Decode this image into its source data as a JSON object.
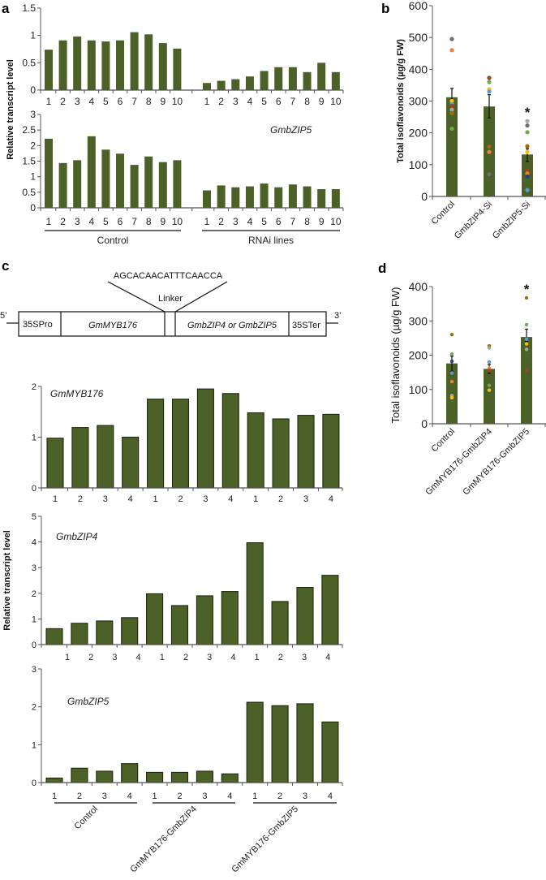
{
  "panels": {
    "a": "a",
    "b": "b",
    "c": "c",
    "d": "d"
  },
  "colors": {
    "bar": "#4b6127",
    "bar_outline": "#1e2a0c",
    "axis": "#555555"
  },
  "construct": {
    "linker_sequence": "AGCACAACATTTCAACCA",
    "linker_label": "Linker",
    "five_prime": "5’",
    "three_prime": "3’",
    "segments": [
      "35SPro",
      "GmMYB176",
      "",
      "GmbZIP4 or GmbZIP5",
      "35STer"
    ]
  },
  "chart_data": [
    {
      "id": "a-top",
      "type": "bar",
      "ylabel": "Relative transcript level",
      "ylim": [
        0,
        1.5
      ],
      "yticks": [
        "0",
        "0.5",
        "1",
        "1.5"
      ],
      "groups": [
        "Control",
        "RNAi lines"
      ],
      "categories": [
        "1",
        "2",
        "3",
        "4",
        "5",
        "6",
        "7",
        "8",
        "9",
        "10",
        "1",
        "2",
        "3",
        "4",
        "5",
        "6",
        "7",
        "8",
        "9",
        "10"
      ],
      "values": [
        0.74,
        0.91,
        0.98,
        0.91,
        0.89,
        0.91,
        1.06,
        1.02,
        0.86,
        0.76,
        0.13,
        0.17,
        0.2,
        0.25,
        0.35,
        0.42,
        0.42,
        0.33,
        0.5,
        0.33
      ]
    },
    {
      "id": "a-bottom",
      "type": "bar",
      "title": "GmbZIP5",
      "ylim": [
        0,
        3
      ],
      "yticks": [
        "0",
        "0.5",
        "1",
        "1.5",
        "2",
        "2.5",
        "3"
      ],
      "groups": [
        "Control",
        "RNAi lines"
      ],
      "categories": [
        "1",
        "2",
        "3",
        "4",
        "5",
        "6",
        "7",
        "8",
        "9",
        "10",
        "1",
        "2",
        "3",
        "4",
        "5",
        "6",
        "7",
        "8",
        "9",
        "10"
      ],
      "values": [
        2.22,
        1.44,
        1.53,
        2.3,
        1.87,
        1.74,
        1.38,
        1.65,
        1.47,
        1.53,
        0.56,
        0.72,
        0.66,
        0.69,
        0.78,
        0.66,
        0.75,
        0.69,
        0.6,
        0.6
      ]
    },
    {
      "id": "b",
      "type": "bar",
      "ylabel": "Total isoflavonoids (µg/g FW)",
      "ylim": [
        0,
        600
      ],
      "yticks": [
        "0",
        "100",
        "200",
        "300",
        "400",
        "500",
        "600"
      ],
      "categories": [
        "Control",
        "GmbZIP4-Si",
        "GmbZIP5-Si"
      ],
      "values": [
        312,
        283,
        132
      ],
      "error": [
        [
          280,
          340
        ],
        [
          247,
          320
        ],
        [
          110,
          150
        ]
      ],
      "significance": [
        "",
        "",
        "*"
      ],
      "points": [
        [
          [
            495,
            "#6d6d6d"
          ],
          [
            460,
            "#f47f3a"
          ],
          [
            300,
            "#ffc000"
          ],
          [
            290,
            "#5b9bd5"
          ],
          [
            285,
            "#a0441a"
          ],
          [
            273,
            "#a5a5a5"
          ],
          [
            262,
            "#9a6f0c"
          ],
          [
            213,
            "#70ad47"
          ]
        ],
        [
          [
            373,
            "#a0441a"
          ],
          [
            360,
            "#70ad47"
          ],
          [
            337,
            "#ffc000"
          ],
          [
            330,
            "#5b9bd5"
          ],
          [
            157,
            "#9a6f0c"
          ],
          [
            140,
            "#f47f3a"
          ],
          [
            70,
            "#6d6d6d"
          ]
        ],
        [
          [
            237,
            "#a5a5a5"
          ],
          [
            223,
            "#6d6d6d"
          ],
          [
            202,
            "#70ad47"
          ],
          [
            158,
            "#9a6f0c"
          ],
          [
            140,
            "#ffc000"
          ],
          [
            83,
            "#a0441a"
          ],
          [
            72,
            "#f47f3a"
          ],
          [
            63,
            "#264478"
          ],
          [
            20,
            "#5b9bd5"
          ]
        ]
      ]
    },
    {
      "id": "c-myb",
      "type": "bar",
      "title": "GmMYB176",
      "ylim": [
        0,
        2
      ],
      "yticks": [
        "0",
        "1",
        "2"
      ],
      "categories": [
        "1",
        "2",
        "3",
        "4",
        "1",
        "2",
        "3",
        "4",
        "1",
        "2",
        "3",
        "4"
      ],
      "values": [
        0.98,
        1.19,
        1.23,
        1.0,
        1.75,
        1.75,
        1.95,
        1.86,
        1.48,
        1.36,
        1.43,
        1.45
      ]
    },
    {
      "id": "c-zip4",
      "type": "bar",
      "title": "GmbZIP4",
      "ylabel": "Relative transcript level",
      "ylim": [
        0,
        5
      ],
      "yticks": [
        "0",
        "1",
        "2",
        "3",
        "4",
        "5"
      ],
      "categories": [
        "1",
        "2",
        "3",
        "4",
        "1",
        "2",
        "3",
        "4",
        "1",
        "2",
        "3",
        "4"
      ],
      "values": [
        0.62,
        0.83,
        0.92,
        1.05,
        1.98,
        1.52,
        1.9,
        2.07,
        3.97,
        1.68,
        2.23,
        2.7
      ]
    },
    {
      "id": "c-zip5",
      "type": "bar",
      "title": "GmbZIP5",
      "ylim": [
        0,
        3
      ],
      "yticks": [
        "0",
        "1",
        "2",
        "3"
      ],
      "groups": [
        "Control",
        "GmMYB176-GmbZIP4",
        "GmMYB176-GmbZIP5"
      ],
      "categories": [
        "1",
        "2",
        "3",
        "4",
        "1",
        "2",
        "3",
        "4",
        "1",
        "2",
        "3",
        "4"
      ],
      "values": [
        0.12,
        0.38,
        0.3,
        0.5,
        0.27,
        0.27,
        0.3,
        0.23,
        2.12,
        2.03,
        2.08,
        1.6
      ]
    },
    {
      "id": "d",
      "type": "bar",
      "ylabel": "Total isoflavonoids (µg/g FW)",
      "ylim": [
        0,
        400
      ],
      "yticks": [
        "0",
        "100",
        "200",
        "300",
        "400"
      ],
      "categories": [
        "Control",
        "GmMYB176-GmbZIP4",
        "GmMYB176-GmbZIP5"
      ],
      "values": [
        176,
        160,
        253
      ],
      "error": [
        [
          153,
          197
        ],
        [
          147,
          173
        ],
        [
          240,
          276
        ]
      ],
      "significance": [
        "",
        "",
        "*"
      ],
      "points": [
        [
          [
            260,
            "#9a6f0c"
          ],
          [
            203,
            "#70ad47"
          ],
          [
            182,
            "#264478"
          ],
          [
            148,
            "#5b9bd5"
          ],
          [
            123,
            "#f47f3a"
          ],
          [
            82,
            "#a5a5a5"
          ],
          [
            76,
            "#ffc000"
          ]
        ],
        [
          [
            227,
            "#9a6f0c"
          ],
          [
            221,
            "#a5a5a5"
          ],
          [
            180,
            "#5b9bd5"
          ],
          [
            162,
            "#f47f3a"
          ],
          [
            155,
            "#a0441a"
          ],
          [
            112,
            "#70ad47"
          ],
          [
            98,
            "#ffc000"
          ]
        ],
        [
          [
            367,
            "#9a6f0c"
          ],
          [
            289,
            "#70ad47"
          ],
          [
            247,
            "#5b9bd5"
          ],
          [
            233,
            "#ffc000"
          ],
          [
            217,
            "#a5a5a5"
          ],
          [
            155,
            "#a0441a"
          ]
        ]
      ]
    }
  ]
}
